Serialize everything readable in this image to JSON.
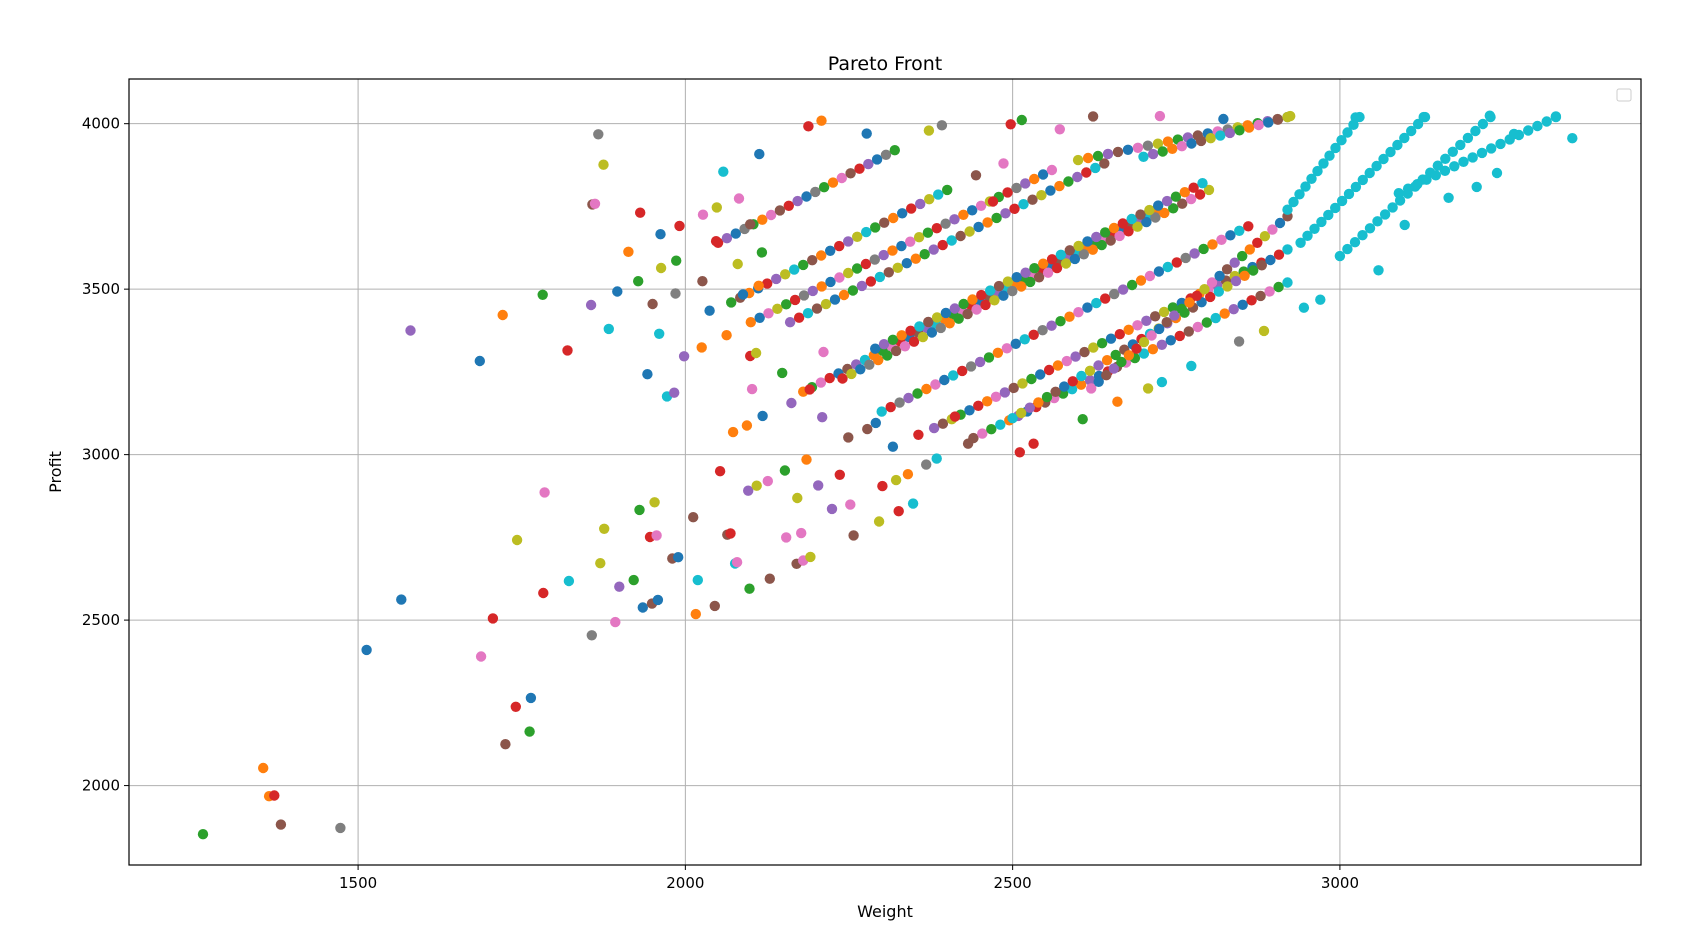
{
  "chart_data": {
    "type": "scatter",
    "title": "Pareto Front",
    "xlabel": "Weight",
    "ylabel": "Profit",
    "xlim": [
      1150,
      3460
    ],
    "ylim": [
      1760,
      4135
    ],
    "x_ticks": [
      1500,
      2000,
      2500,
      3000
    ],
    "y_ticks": [
      2000,
      2500,
      3000,
      3500,
      4000
    ],
    "x_tick_labels": [
      "1500",
      "2000",
      "2500",
      "3000"
    ],
    "y_tick_labels": [
      "2000",
      "2500",
      "3000",
      "3500",
      "4000"
    ],
    "grid": true,
    "legend": "upper-right (empty)",
    "marker_colors": [
      "#1f77b4",
      "#ff7f0e",
      "#2ca02c",
      "#d62728",
      "#9467bd",
      "#8c564b",
      "#e377c2",
      "#7f7f7f",
      "#bcbd22",
      "#17becf"
    ],
    "points": [
      {
        "x": 1263,
        "y": 1853,
        "color": "#2ca02c"
      },
      {
        "x": 1355,
        "y": 2053,
        "color": "#ff7f0e"
      },
      {
        "x": 1364,
        "y": 1968,
        "color": "#ff7f0e"
      },
      {
        "x": 1372,
        "y": 1970,
        "color": "#d62728"
      },
      {
        "x": 1382,
        "y": 1882,
        "color": "#8c564b"
      },
      {
        "x": 1473,
        "y": 1872,
        "color": "#7f7f7f"
      },
      {
        "x": 1513,
        "y": 2410,
        "color": "#1f77b4"
      },
      {
        "x": 1566,
        "y": 2562,
        "color": "#1f77b4"
      },
      {
        "x": 1580,
        "y": 3375,
        "color": "#9467bd"
      },
      {
        "x": 1686,
        "y": 3283,
        "color": "#1f77b4"
      },
      {
        "x": 1688,
        "y": 2390,
        "color": "#e377c2"
      },
      {
        "x": 1706,
        "y": 2505,
        "color": "#d62728"
      },
      {
        "x": 1721,
        "y": 3422,
        "color": "#ff7f0e"
      },
      {
        "x": 1725,
        "y": 2125,
        "color": "#8c564b"
      },
      {
        "x": 1741,
        "y": 2238,
        "color": "#d62728"
      },
      {
        "x": 1743,
        "y": 2742,
        "color": "#bcbd22"
      },
      {
        "x": 1762,
        "y": 2163,
        "color": "#2ca02c"
      },
      {
        "x": 1764,
        "y": 2265,
        "color": "#1f77b4"
      },
      {
        "x": 1782,
        "y": 3483,
        "color": "#2ca02c"
      },
      {
        "x": 1783,
        "y": 2582,
        "color": "#d62728"
      },
      {
        "x": 1785,
        "y": 2886,
        "color": "#e377c2"
      },
      {
        "x": 1820,
        "y": 3315,
        "color": "#d62728"
      },
      {
        "x": 1822,
        "y": 2618,
        "color": "#17becf"
      },
      {
        "x": 1856,
        "y": 3452,
        "color": "#9467bd"
      },
      {
        "x": 1857,
        "y": 2454,
        "color": "#7f7f7f"
      },
      {
        "x": 1858,
        "y": 3756,
        "color": "#8c564b"
      },
      {
        "x": 1862,
        "y": 3758,
        "color": "#e377c2"
      },
      {
        "x": 1867,
        "y": 3968,
        "color": "#7f7f7f"
      },
      {
        "x": 1870,
        "y": 2672,
        "color": "#bcbd22"
      },
      {
        "x": 1875,
        "y": 3876,
        "color": "#bcbd22"
      },
      {
        "x": 1876,
        "y": 2776,
        "color": "#bcbd22"
      },
      {
        "x": 1883,
        "y": 3380,
        "color": "#17becf"
      },
      {
        "x": 1893,
        "y": 2494,
        "color": "#e377c2"
      },
      {
        "x": 1896,
        "y": 3493,
        "color": "#1f77b4"
      },
      {
        "x": 1899,
        "y": 2601,
        "color": "#9467bd"
      },
      {
        "x": 1913,
        "y": 3613,
        "color": "#ff7f0e"
      },
      {
        "x": 1921,
        "y": 2621,
        "color": "#2ca02c"
      },
      {
        "x": 1928,
        "y": 3524,
        "color": "#2ca02c"
      },
      {
        "x": 1930,
        "y": 2833,
        "color": "#2ca02c"
      },
      {
        "x": 1931,
        "y": 3731,
        "color": "#d62728"
      },
      {
        "x": 1935,
        "y": 2538,
        "color": "#1f77b4"
      },
      {
        "x": 1942,
        "y": 3243,
        "color": "#1f77b4"
      },
      {
        "x": 1946,
        "y": 2751,
        "color": "#d62728"
      },
      {
        "x": 1949,
        "y": 2550,
        "color": "#8c564b"
      },
      {
        "x": 1950,
        "y": 3455,
        "color": "#8c564b"
      },
      {
        "x": 1953,
        "y": 2856,
        "color": "#bcbd22"
      },
      {
        "x": 1956,
        "y": 2756,
        "color": "#e377c2"
      },
      {
        "x": 1958,
        "y": 2561,
        "color": "#1f77b4"
      },
      {
        "x": 1960,
        "y": 3365,
        "color": "#17becf"
      },
      {
        "x": 1962,
        "y": 3666,
        "color": "#1f77b4"
      },
      {
        "x": 1963,
        "y": 3564,
        "color": "#bcbd22"
      },
      {
        "x": 1972,
        "y": 3176,
        "color": "#17becf"
      },
      {
        "x": 1980,
        "y": 2686,
        "color": "#8c564b"
      },
      {
        "x": 1983,
        "y": 3187,
        "color": "#9467bd"
      },
      {
        "x": 1985,
        "y": 3487,
        "color": "#7f7f7f"
      },
      {
        "x": 1986,
        "y": 3586,
        "color": "#2ca02c"
      },
      {
        "x": 1989,
        "y": 2690,
        "color": "#1f77b4"
      },
      {
        "x": 1991,
        "y": 3691,
        "color": "#d62728"
      },
      {
        "x": 1998,
        "y": 3297,
        "color": "#9467bd"
      },
      {
        "x": 2012,
        "y": 2811,
        "color": "#8c564b"
      },
      {
        "x": 2016,
        "y": 2518,
        "color": "#ff7f0e"
      },
      {
        "x": 2019,
        "y": 2621,
        "color": "#17becf"
      },
      {
        "x": 2025,
        "y": 3324,
        "color": "#ff7f0e"
      },
      {
        "x": 2026,
        "y": 3524,
        "color": "#8c564b"
      },
      {
        "x": 2027,
        "y": 3725,
        "color": "#e377c2"
      },
      {
        "x": 2037,
        "y": 3435,
        "color": "#1f77b4"
      },
      {
        "x": 2045,
        "y": 2543,
        "color": "#8c564b"
      },
      {
        "x": 2047,
        "y": 3645,
        "color": "#d62728"
      },
      {
        "x": 2048,
        "y": 3747,
        "color": "#bcbd22"
      },
      {
        "x": 2053,
        "y": 2950,
        "color": "#d62728"
      },
      {
        "x": 2058,
        "y": 3855,
        "color": "#17becf"
      },
      {
        "x": 2063,
        "y": 3361,
        "color": "#ff7f0e"
      },
      {
        "x": 2064,
        "y": 2758,
        "color": "#8c564b"
      },
      {
        "x": 2069,
        "y": 2762,
        "color": "#d62728"
      },
      {
        "x": 2073,
        "y": 3068,
        "color": "#ff7f0e"
      },
      {
        "x": 2076,
        "y": 2671,
        "color": "#17becf"
      },
      {
        "x": 2079,
        "y": 2675,
        "color": "#e377c2"
      },
      {
        "x": 2080,
        "y": 3576,
        "color": "#bcbd22"
      },
      {
        "x": 2082,
        "y": 3774,
        "color": "#e377c2"
      },
      {
        "x": 2088,
        "y": 3484,
        "color": "#1f77b4"
      },
      {
        "x": 2094,
        "y": 3088,
        "color": "#ff7f0e"
      },
      {
        "x": 2096,
        "y": 2891,
        "color": "#9467bd"
      },
      {
        "x": 2098,
        "y": 2595,
        "color": "#2ca02c"
      },
      {
        "x": 2099,
        "y": 3298,
        "color": "#d62728"
      },
      {
        "x": 2099,
        "y": 3696,
        "color": "#8c564b"
      },
      {
        "x": 2102,
        "y": 3198,
        "color": "#e377c2"
      },
      {
        "x": 2108,
        "y": 3307,
        "color": "#bcbd22"
      },
      {
        "x": 2109,
        "y": 2906,
        "color": "#bcbd22"
      },
      {
        "x": 2112,
        "y": 3510,
        "color": "#ff7f0e"
      },
      {
        "x": 2113,
        "y": 3908,
        "color": "#1f77b4"
      },
      {
        "x": 2117,
        "y": 3611,
        "color": "#2ca02c"
      },
      {
        "x": 2118,
        "y": 3117,
        "color": "#1f77b4"
      },
      {
        "x": 2126,
        "y": 2920,
        "color": "#e377c2"
      },
      {
        "x": 2129,
        "y": 2625,
        "color": "#8c564b"
      },
      {
        "x": 2148,
        "y": 3247,
        "color": "#2ca02c"
      },
      {
        "x": 2152,
        "y": 2952,
        "color": "#2ca02c"
      },
      {
        "x": 2154,
        "y": 2750,
        "color": "#e377c2"
      },
      {
        "x": 2162,
        "y": 3156,
        "color": "#9467bd"
      },
      {
        "x": 2170,
        "y": 2670,
        "color": "#8c564b"
      },
      {
        "x": 2171,
        "y": 2869,
        "color": "#bcbd22"
      },
      {
        "x": 2177,
        "y": 2763,
        "color": "#e377c2"
      },
      {
        "x": 2180,
        "y": 2680,
        "color": "#e377c2"
      },
      {
        "x": 2185,
        "y": 2985,
        "color": "#ff7f0e"
      },
      {
        "x": 2190,
        "y": 3197,
        "color": "#d62728"
      },
      {
        "x": 2191,
        "y": 2691,
        "color": "#bcbd22"
      },
      {
        "x": 2203,
        "y": 2907,
        "color": "#9467bd"
      },
      {
        "x": 2209,
        "y": 3113,
        "color": "#9467bd"
      },
      {
        "x": 2211,
        "y": 3310,
        "color": "#e377c2"
      },
      {
        "x": 2224,
        "y": 2836,
        "color": "#9467bd"
      },
      {
        "x": 2236,
        "y": 2939,
        "color": "#d62728"
      },
      {
        "x": 2249,
        "y": 3052,
        "color": "#8c564b"
      },
      {
        "x": 2252,
        "y": 2849,
        "color": "#e377c2"
      },
      {
        "x": 2257,
        "y": 2756,
        "color": "#8c564b"
      },
      {
        "x": 2278,
        "y": 3077,
        "color": "#8c564b"
      },
      {
        "x": 2291,
        "y": 3096,
        "color": "#1f77b4"
      },
      {
        "x": 2296,
        "y": 2798,
        "color": "#bcbd22"
      },
      {
        "x": 2301,
        "y": 2905,
        "color": "#d62728"
      },
      {
        "x": 2317,
        "y": 3024,
        "color": "#1f77b4"
      },
      {
        "x": 2322,
        "y": 2923,
        "color": "#bcbd22"
      },
      {
        "x": 2326,
        "y": 2829,
        "color": "#d62728"
      },
      {
        "x": 2340,
        "y": 2941,
        "color": "#ff7f0e"
      },
      {
        "x": 2348,
        "y": 2852,
        "color": "#17becf"
      },
      {
        "x": 2356,
        "y": 3060,
        "color": "#d62728"
      },
      {
        "x": 2368,
        "y": 2970,
        "color": "#7f7f7f"
      },
      {
        "x": 2384,
        "y": 2988,
        "color": "#17becf"
      },
      {
        "x": 2412,
        "y": 3115,
        "color": "#d62728"
      },
      {
        "x": 2432,
        "y": 3033,
        "color": "#8c564b"
      },
      {
        "x": 2444,
        "y": 3844,
        "color": "#8c564b"
      },
      {
        "x": 2470,
        "y": 3765,
        "color": "#d62728"
      },
      {
        "x": 2486,
        "y": 3880,
        "color": "#e377c2"
      },
      {
        "x": 2511,
        "y": 3007,
        "color": "#d62728"
      },
      {
        "x": 2532,
        "y": 3033,
        "color": "#d62728"
      },
      {
        "x": 2607,
        "y": 3107,
        "color": "#2ca02c"
      },
      {
        "x": 2660,
        "y": 3160,
        "color": "#ff7f0e"
      },
      {
        "x": 2707,
        "y": 3200,
        "color": "#bcbd22"
      },
      {
        "x": 2728,
        "y": 3219,
        "color": "#17becf"
      },
      {
        "x": 2773,
        "y": 3268,
        "color": "#17becf"
      },
      {
        "x": 2846,
        "y": 3342,
        "color": "#7f7f7f"
      },
      {
        "x": 2884,
        "y": 3374,
        "color": "#bcbd22"
      },
      {
        "x": 2945,
        "y": 3444,
        "color": "#17becf"
      },
      {
        "x": 2970,
        "y": 3468,
        "color": "#17becf"
      },
      {
        "x": 3059,
        "y": 3557,
        "color": "#17becf"
      },
      {
        "x": 3099,
        "y": 3694,
        "color": "#17becf"
      },
      {
        "x": 3166,
        "y": 3776,
        "color": "#17becf"
      },
      {
        "x": 3209,
        "y": 3809,
        "color": "#17becf"
      },
      {
        "x": 3240,
        "y": 3851,
        "color": "#17becf"
      },
      {
        "x": 3266,
        "y": 3969,
        "color": "#17becf"
      },
      {
        "x": 3355,
        "y": 3956,
        "color": "#17becf"
      },
      {
        "x": 2188,
        "y": 3992,
        "color": "#d62728"
      },
      {
        "x": 2208,
        "y": 4009,
        "color": "#ff7f0e"
      },
      {
        "x": 2277,
        "y": 3970,
        "color": "#1f77b4"
      },
      {
        "x": 2372,
        "y": 3979,
        "color": "#bcbd22"
      },
      {
        "x": 2392,
        "y": 3995,
        "color": "#7f7f7f"
      },
      {
        "x": 2497,
        "y": 3998,
        "color": "#d62728"
      },
      {
        "x": 2514,
        "y": 4011,
        "color": "#2ca02c"
      },
      {
        "x": 2572,
        "y": 3983,
        "color": "#e377c2"
      },
      {
        "x": 2623,
        "y": 4022,
        "color": "#8c564b"
      },
      {
        "x": 2725,
        "y": 4023,
        "color": "#e377c2"
      },
      {
        "x": 2822,
        "y": 4014,
        "color": "#1f77b4"
      },
      {
        "x": 2924,
        "y": 4023,
        "color": "#bcbd22"
      },
      {
        "x": 3024,
        "y": 4019,
        "color": "#17becf"
      },
      {
        "x": 3128,
        "y": 4020,
        "color": "#17becf"
      },
      {
        "x": 3229,
        "y": 4024,
        "color": "#17becf"
      },
      {
        "x": 3330,
        "y": 4022,
        "color": "#17becf"
      }
    ],
    "diagonal_bands": [
      {
        "x_start": 2050,
        "y_start": 3640,
        "x_end": 2320,
        "y_end": 3920,
        "colors": [
          "#d62728",
          "#9467bd",
          "#1f77b4",
          "#7f7f7f",
          "#2ca02c",
          "#ff7f0e",
          "#e377c2",
          "#8c564b"
        ]
      },
      {
        "x_start": 2070,
        "y_start": 3460,
        "x_end": 2400,
        "y_end": 3800,
        "colors": [
          "#2ca02c",
          "#8c564b",
          "#ff7f0e",
          "#1f77b4",
          "#d62728",
          "#9467bd",
          "#bcbd22",
          "#17becf"
        ]
      },
      {
        "x_start": 2100,
        "y_start": 3400,
        "x_end": 2560,
        "y_end": 3860,
        "colors": [
          "#ff7f0e",
          "#1f77b4",
          "#e377c2",
          "#bcbd22",
          "#2ca02c",
          "#d62728",
          "#7f7f7f",
          "#9467bd"
        ]
      },
      {
        "x_start": 2160,
        "y_start": 3400,
        "x_end": 2640,
        "y_end": 3880,
        "colors": [
          "#9467bd",
          "#d62728",
          "#17becf",
          "#8c564b",
          "#bcbd22",
          "#1f77b4",
          "#ff7f0e",
          "#2ca02c"
        ]
      },
      {
        "x_start": 2180,
        "y_start": 3190,
        "x_end": 2720,
        "y_end": 3740,
        "colors": [
          "#ff7f0e",
          "#2ca02c",
          "#e377c2",
          "#d62728",
          "#1f77b4",
          "#8c564b",
          "#9467bd",
          "#17becf"
        ]
      },
      {
        "x_start": 2240,
        "y_start": 3230,
        "x_end": 2800,
        "y_end": 3800,
        "colors": [
          "#d62728",
          "#bcbd22",
          "#1f77b4",
          "#7f7f7f",
          "#ff7f0e",
          "#2ca02c",
          "#8c564b",
          "#e377c2"
        ]
      },
      {
        "x_start": 2290,
        "y_start": 3320,
        "x_end": 2790,
        "y_end": 3820,
        "colors": [
          "#1f77b4",
          "#9467bd",
          "#2ca02c",
          "#ff7f0e",
          "#d62728",
          "#17becf",
          "#8c564b",
          "#bcbd22"
        ]
      },
      {
        "x_start": 2300,
        "y_start": 3130,
        "x_end": 2860,
        "y_end": 3690,
        "colors": [
          "#17becf",
          "#d62728",
          "#7f7f7f",
          "#9467bd",
          "#2ca02c",
          "#ff7f0e",
          "#e377c2",
          "#1f77b4"
        ]
      },
      {
        "x_start": 2380,
        "y_start": 3080,
        "x_end": 2880,
        "y_end": 3580,
        "colors": [
          "#9467bd",
          "#8c564b",
          "#bcbd22",
          "#2ca02c",
          "#1f77b4",
          "#d62728",
          "#ff7f0e",
          "#e377c2"
        ]
      },
      {
        "x_start": 2440,
        "y_start": 3050,
        "x_end": 2920,
        "y_end": 3520,
        "colors": [
          "#8c564b",
          "#e377c2",
          "#2ca02c",
          "#17becf",
          "#ff7f0e",
          "#9467bd",
          "#1f77b4",
          "#d62728"
        ]
      },
      {
        "x_start": 2500,
        "y_start": 3110,
        "x_end": 2920,
        "y_end": 3620,
        "colors": [
          "#17becf",
          "#bcbd22",
          "#9467bd",
          "#ff7f0e",
          "#2ca02c",
          "#8c564b",
          "#1f77b4",
          "#d62728"
        ]
      },
      {
        "x_start": 2620,
        "y_start": 3200,
        "x_end": 2920,
        "y_end": 3720,
        "colors": [
          "#e377c2",
          "#1f77b4",
          "#8c564b",
          "#9467bd",
          "#2ca02c",
          "#ff7f0e",
          "#d62728",
          "#bcbd22"
        ]
      },
      {
        "x_start": 2600,
        "y_start": 3890,
        "x_end": 2920,
        "y_end": 4020,
        "colors": [
          "#bcbd22",
          "#ff7f0e",
          "#2ca02c",
          "#9467bd",
          "#8c564b",
          "#1f77b4",
          "#e377c2",
          "#7f7f7f"
        ]
      },
      {
        "x_start": 2700,
        "y_start": 3900,
        "x_end": 2920,
        "y_end": 4020,
        "colors": [
          "#17becf",
          "#9467bd",
          "#2ca02c",
          "#ff7f0e",
          "#e377c2",
          "#1f77b4",
          "#8c564b",
          "#bcbd22"
        ]
      },
      {
        "x_start": 2920,
        "y_start": 3740,
        "x_end": 3030,
        "y_end": 4020,
        "colors": [
          "#17becf"
        ]
      },
      {
        "x_start": 2940,
        "y_start": 3640,
        "x_end": 3130,
        "y_end": 4020,
        "colors": [
          "#17becf"
        ]
      },
      {
        "x_start": 3000,
        "y_start": 3600,
        "x_end": 3230,
        "y_end": 4020,
        "colors": [
          "#17becf"
        ]
      },
      {
        "x_start": 3090,
        "y_start": 3790,
        "x_end": 3330,
        "y_end": 4020,
        "colors": [
          "#17becf"
        ]
      }
    ]
  }
}
